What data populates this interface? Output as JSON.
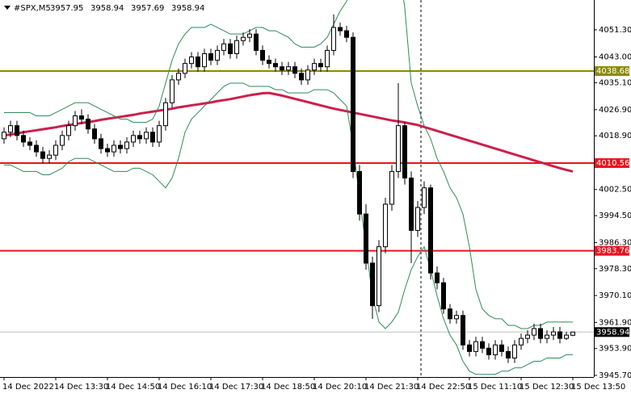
{
  "chart_data": {
    "type": "candlestick",
    "symbol": "#SPX,M5",
    "categories": [
      "14 Dec 2022",
      null,
      null,
      null,
      null,
      null,
      null,
      null,
      "14 Dec 13:30",
      null,
      null,
      null,
      null,
      null,
      null,
      null,
      "14 Dec 14:50",
      null,
      null,
      null,
      null,
      null,
      null,
      null,
      "14 Dec 16:10",
      null,
      null,
      null,
      null,
      null,
      null,
      null,
      "14 Dec 17:30",
      null,
      null,
      null,
      null,
      null,
      null,
      null,
      "14 Dec 18:50",
      null,
      null,
      null,
      null,
      null,
      null,
      null,
      "14 Dec 20:10",
      null,
      null,
      null,
      null,
      null,
      null,
      null,
      "14 Dec 21:30",
      null,
      null,
      null,
      null,
      null,
      null,
      null,
      "14 Dec 22:50",
      null,
      null,
      null,
      null,
      null,
      null,
      null,
      "15 Dec 11:10",
      null,
      null,
      null,
      null,
      null,
      null,
      null,
      "15 Dec 12:30",
      null,
      null,
      null,
      null,
      null,
      null,
      null,
      "15 Dec 13:50"
    ],
    "open": [
      4018,
      4020,
      4022,
      4019,
      4017,
      4016,
      4014,
      4012,
      4013,
      4016,
      4019,
      4022,
      4025,
      4024,
      4021,
      4018,
      4015,
      4014,
      4016,
      4015,
      4017,
      4019,
      4018,
      4020,
      4017,
      4022,
      4029,
      4036,
      4038,
      4041,
      4043,
      4040,
      4044,
      4042,
      4045,
      4047,
      4044,
      4048,
      4049,
      4050,
      4045,
      4042,
      4041,
      4040,
      4039,
      4040,
      4038,
      4036,
      4039,
      4041,
      4040,
      4045,
      4052,
      4051,
      4049,
      4008,
      3995,
      3980,
      3967,
      3985,
      3998,
      4008,
      4022,
      4006,
      3990,
      3997,
      4003,
      3977,
      3974,
      3966,
      3963,
      3964,
      3955,
      3953,
      3956,
      3954,
      3952,
      3955,
      3953,
      3951,
      3955,
      3957,
      3958,
      3960,
      3957,
      3958,
      3959,
      3957,
      3957.95
    ],
    "high": [
      4021.5,
      4023.5,
      4023.5,
      4020.5,
      4018.5,
      4017.5,
      4015.5,
      4014.5,
      4017.5,
      4020.5,
      4023.5,
      4026.5,
      4027,
      4025.5,
      4022.5,
      4019.5,
      4016.5,
      4017.5,
      4017.5,
      4018.5,
      4020.5,
      4020.5,
      4021.5,
      4021.5,
      4023.5,
      4030.5,
      4037.5,
      4039.5,
      4042.5,
      4044.5,
      4044.5,
      4045.5,
      4045.5,
      4046.5,
      4048.5,
      4048.5,
      4049.5,
      4050.5,
      4051.5,
      4051.5,
      4046.5,
      4043.5,
      4042.5,
      4041.5,
      4041.5,
      4041.5,
      4039.5,
      4040.5,
      4042.5,
      4042.5,
      4046.5,
      4056,
      4053.5,
      4052.5,
      4050.5,
      4010,
      3998,
      3982,
      3987,
      4000,
      4010,
      4035,
      4023,
      4008,
      3999,
      4005,
      4004,
      3979,
      3975.5,
      3967.5,
      3965.5,
      3965.5,
      3956.5,
      3957.5,
      3957.5,
      3955.5,
      3956.5,
      3956.5,
      3954.5,
      3956.5,
      3958.5,
      3959.5,
      3961.5,
      3961.5,
      3959.5,
      3960.5,
      3960.5,
      3959,
      3958.94
    ],
    "low": [
      4016.5,
      4018.5,
      4017.5,
      4015.5,
      4014.5,
      4012.5,
      4010.5,
      4010.5,
      4011.5,
      4014.5,
      4017.5,
      4020.5,
      4022.5,
      4019.5,
      4016.5,
      4013.5,
      4012.5,
      4012.5,
      4013.5,
      4013.5,
      4015.5,
      4016.5,
      4016.5,
      4015.5,
      4015.5,
      4020.5,
      4027.5,
      4034.5,
      4036.5,
      4039.5,
      4038.5,
      4038.5,
      4040.5,
      4040.5,
      4043.5,
      4042.5,
      4042.5,
      4046.5,
      4047.5,
      4043.5,
      4040.5,
      4039.5,
      4038.5,
      4037.5,
      4037.5,
      4036.5,
      4034.5,
      4034.5,
      4037.5,
      4038.5,
      4038.5,
      4043.5,
      4049.5,
      4047.5,
      4006,
      3993,
      3978,
      3963,
      3965,
      3983,
      3996,
      4006,
      4004,
      3980,
      3988,
      3995,
      3975,
      3972,
      3964.5,
      3961.5,
      3961.5,
      3953.5,
      3951.5,
      3951.5,
      3952.5,
      3950.5,
      3950.5,
      3951.5,
      3949.5,
      3949.5,
      3953.5,
      3955.5,
      3956.5,
      3955.5,
      3955.5,
      3956.5,
      3955.5,
      3956.5,
      3957.69
    ],
    "close": [
      4020,
      4022,
      4019,
      4017,
      4016,
      4014,
      4012,
      4013,
      4016,
      4019,
      4022,
      4025,
      4024,
      4021,
      4018,
      4015,
      4014,
      4016,
      4015,
      4017,
      4019,
      4018,
      4020,
      4017,
      4022,
      4029,
      4036,
      4038,
      4041,
      4043,
      4040,
      4044,
      4042,
      4045,
      4047,
      4044,
      4048,
      4049,
      4050,
      4045,
      4042,
      4041,
      4040,
      4039,
      4040,
      4038,
      4036,
      4039,
      4041,
      4040,
      4045,
      4052,
      4051,
      4049,
      4008,
      3995,
      3980,
      3967,
      3985,
      3998,
      4008,
      4022,
      4006,
      3990,
      3997,
      4003,
      3977,
      3974,
      3966,
      3963,
      3964,
      3955,
      3953,
      3956,
      3954,
      3952,
      3955,
      3953,
      3951,
      3955,
      3957,
      3958,
      3960,
      3957,
      3958,
      3959,
      3957,
      3958,
      3958.94
    ],
    "up_color": "#ffffff",
    "down_color": "#000000",
    "outline_color": "#000000",
    "overlays": [
      {
        "color": "#cc1f4e",
        "width": 3,
        "values": [
          4019.0,
          4019.3,
          4019.6,
          4020.0,
          4020.3,
          4020.6,
          4020.9,
          4021.2,
          4021.5,
          4021.9,
          4022.2,
          4022.5,
          4022.8,
          4023.1,
          4023.4,
          4023.8,
          4024.1,
          4024.4,
          4024.7,
          4025.0,
          4025.3,
          4025.7,
          4026.0,
          4026.3,
          4026.6,
          4026.9,
          4027.2,
          4027.6,
          4027.9,
          4028.2,
          4028.5,
          4028.8,
          4029.1,
          4029.5,
          4029.8,
          4030.1,
          4030.5,
          4030.9,
          4031.3,
          4031.6,
          4031.9,
          4032.0,
          4031.6,
          4031.2,
          4030.7,
          4030.2,
          4029.7,
          4029.2,
          4028.7,
          4028.2,
          4027.7,
          4027.2,
          4026.8,
          4026.4,
          4026.0,
          4025.6,
          4025.2,
          4024.8,
          4024.4,
          4024.0,
          4023.6,
          4023.3,
          4023.0,
          4022.6,
          4022.2,
          4021.6,
          4021.0,
          4020.4,
          4019.8,
          4019.2,
          4018.6,
          4018.0,
          4017.4,
          4016.8,
          4016.2,
          4015.6,
          4015.0,
          4014.4,
          4013.8,
          4013.2,
          4012.6,
          4012.0,
          4011.4,
          4010.8,
          4010.2,
          4009.6,
          4009.0,
          4008.5,
          4008.0
        ]
      },
      {
        "color": "#2e8b57",
        "width": 1,
        "values": [
          4026,
          4026,
          4026,
          4026,
          4026,
          4025,
          4025,
          4025,
          4026,
          4027,
          4028,
          4029,
          4029,
          4029,
          4028,
          4027,
          4026,
          4025,
          4024,
          4024,
          4023,
          4023,
          4023,
          4024,
          4028,
          4035,
          4042,
          4047,
          4050,
          4052,
          4052,
          4052,
          4053,
          4052,
          4051,
          4050,
          4050,
          4050,
          4051,
          4052,
          4052,
          4051,
          4051,
          4050,
          4049,
          4047,
          4046,
          4046,
          4046,
          4047,
          4049,
          4053,
          4057,
          4060,
          4068,
          4072,
          4072,
          4072,
          4075,
          4075,
          4075,
          4072,
          4058,
          4035,
          4028,
          4022,
          4018,
          4012,
          4008,
          4003,
          4000,
          3995,
          3985,
          3972,
          3966,
          3964,
          3963,
          3963,
          3961,
          3961,
          3960,
          3960,
          3961,
          3961,
          3962,
          3962,
          3962,
          3962,
          3962
        ]
      },
      {
        "color": "#2e8b57",
        "width": 1,
        "values": [
          4010,
          4010,
          4009,
          4008,
          4008,
          4008,
          4007,
          4007,
          4008,
          4009,
          4011,
          4012,
          4012,
          4012,
          4011,
          4010,
          4009,
          4008,
          4008,
          4008,
          4009,
          4009,
          4008,
          4007,
          4005,
          4003,
          4006,
          4012,
          4020,
          4024,
          4026,
          4028,
          4030,
          4032,
          4034,
          4035,
          4035,
          4035,
          4034,
          4034,
          4034,
          4034,
          4033,
          4033,
          4032,
          4032,
          4032,
          4032,
          4033,
          4033,
          4033,
          4032,
          4030,
          4028,
          4016,
          4000,
          3985,
          3970,
          3962,
          3960,
          3962,
          3965,
          3972,
          3978,
          3982,
          3985,
          3978,
          3970,
          3963,
          3958,
          3955,
          3950,
          3947,
          3946,
          3946,
          3946,
          3946,
          3947,
          3947,
          3948,
          3948,
          3949,
          3950,
          3950,
          3951,
          3951,
          3951,
          3952,
          3952
        ]
      }
    ],
    "levels": [
      {
        "value": 4038.68,
        "color": "#8b8b00"
      },
      {
        "value": 4010.56,
        "color": "#e8141e"
      },
      {
        "value": 3983.76,
        "color": "#e8141e"
      }
    ],
    "last_price_color": "#000000",
    "ylim": [
      3945.2,
      4060.4
    ],
    "yticks": [
      {
        "value": 4051.3,
        "label": "4051.30"
      },
      {
        "value": 4043,
        "label": "4043.00"
      },
      {
        "value": 4035.1,
        "label": "4035.10"
      },
      {
        "value": 4026.9,
        "label": "4026.90"
      },
      {
        "value": 4018.9,
        "label": "4018.90"
      },
      {
        "value": 4002.5,
        "label": "4002.50"
      },
      {
        "value": 3994.5,
        "label": "3994.50"
      },
      {
        "value": 3986.3,
        "label": "3986.30"
      },
      {
        "value": 3978.3,
        "label": "3978.30"
      },
      {
        "value": 3970.1,
        "label": "3970.10"
      },
      {
        "value": 3961.9,
        "label": "3961.90"
      },
      {
        "value": 3953.9,
        "label": "3953.90"
      },
      {
        "value": 3945.7,
        "label": "3945.70"
      }
    ]
  }
}
